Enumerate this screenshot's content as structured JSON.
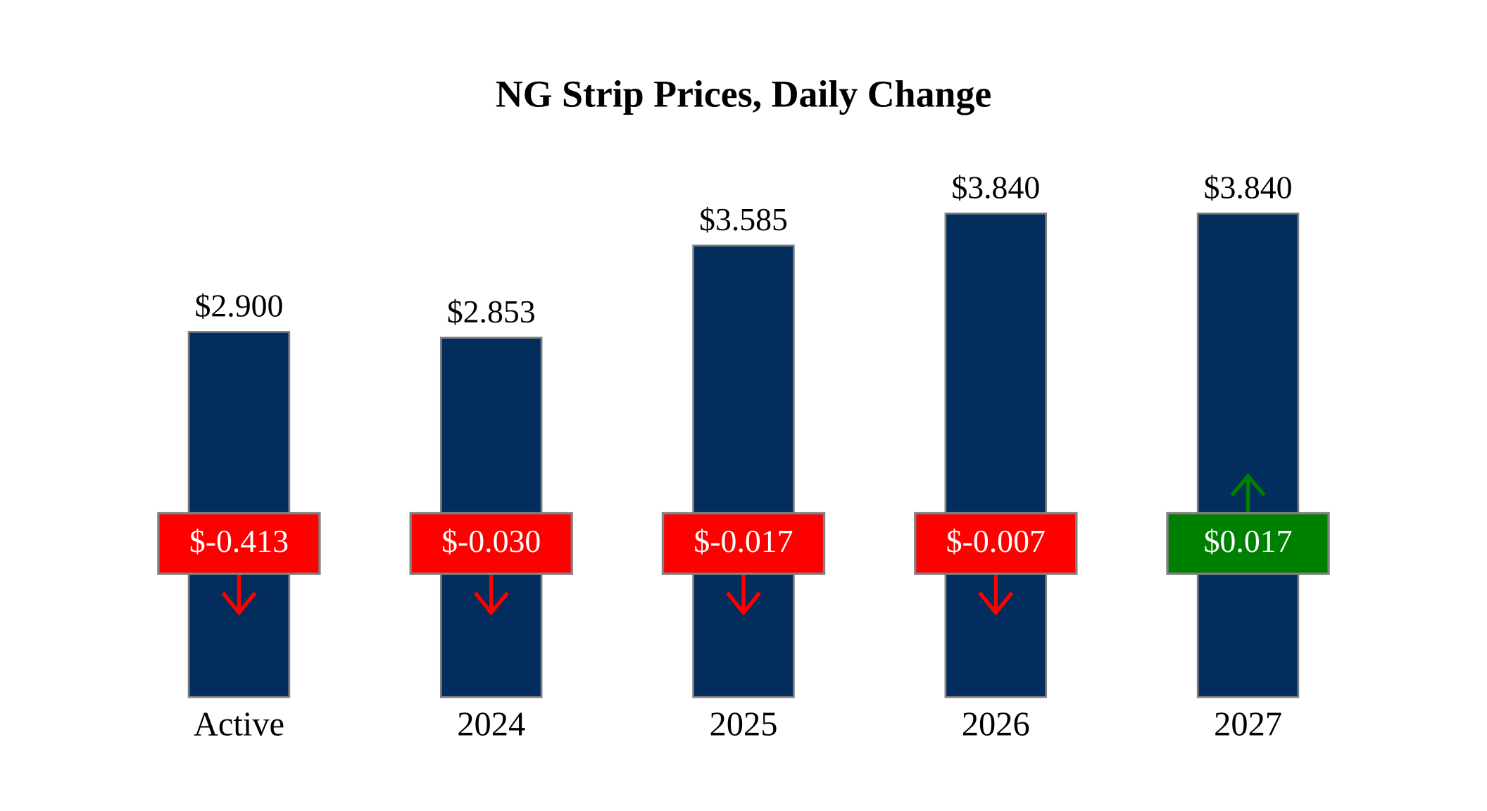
{
  "chart_data": {
    "type": "bar",
    "title": "NG Strip Prices, Daily Change",
    "categories": [
      "Active",
      "2024",
      "2025",
      "2026",
      "2027"
    ],
    "values": [
      2.9,
      2.853,
      3.585,
      3.84,
      3.84
    ],
    "value_labels": [
      "$2.900",
      "$2.853",
      "$3.585",
      "$3.840",
      "$3.840"
    ],
    "changes": [
      -0.413,
      -0.03,
      -0.017,
      -0.007,
      0.017
    ],
    "change_labels": [
      "$-0.413",
      "$-0.030",
      "$-0.017",
      "$-0.007",
      "$0.017"
    ],
    "color": "#032d5c",
    "up_color": "#008000",
    "down_color": "#ff0000"
  }
}
